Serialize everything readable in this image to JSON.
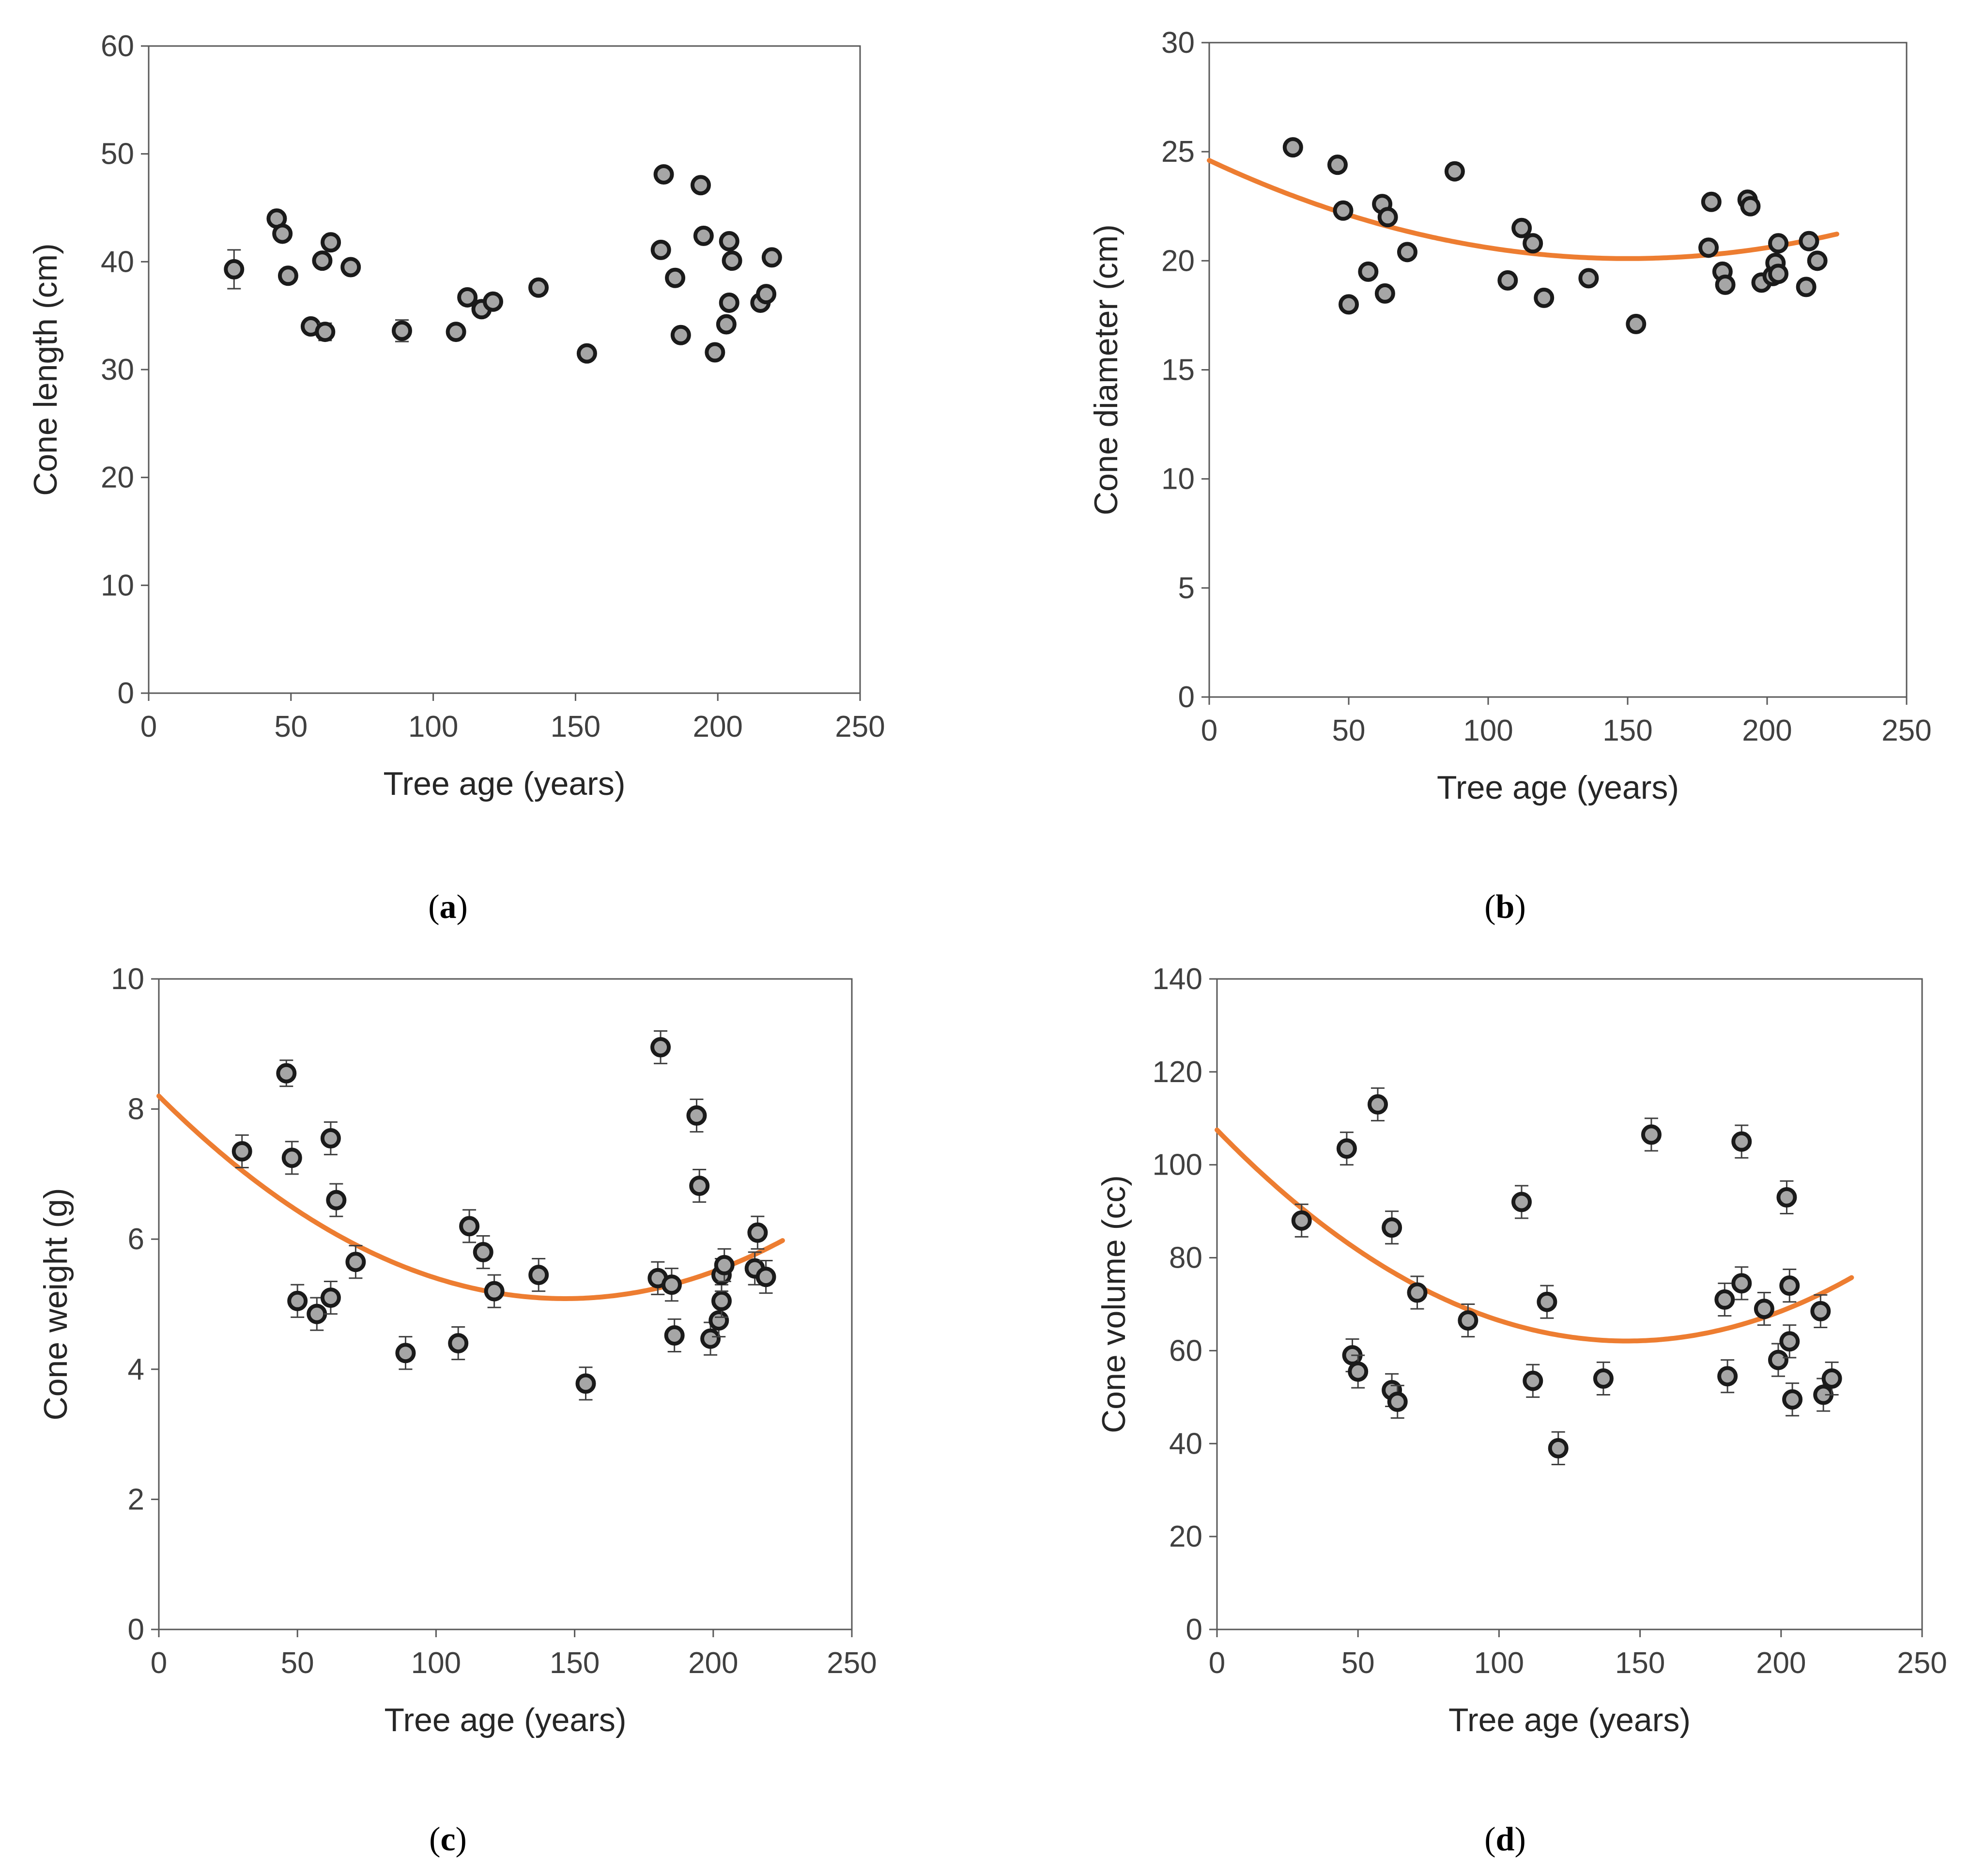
{
  "figure": {
    "colors": {
      "axis": "#595959",
      "marker_fill": "#a6a6a6",
      "marker_edge": "#1a1a1a",
      "trend": "#ed7d31",
      "error": "#404040"
    }
  },
  "chart_data": [
    {
      "id": "a",
      "panel_label": "a",
      "type": "scatter",
      "title": "",
      "xlabel": "Tree age (years)",
      "ylabel": "Cone length (cm)",
      "xlim": [
        0,
        250
      ],
      "ylim": [
        0,
        60
      ],
      "xticks": [
        "0",
        "50",
        "100",
        "150",
        "200",
        "250"
      ],
      "yticks": [
        "0",
        "10",
        "20",
        "30",
        "40",
        "50",
        "60"
      ],
      "grid": false,
      "trendline": null,
      "points": [
        {
          "x": 30,
          "y": 39.3,
          "err": 1.8
        },
        {
          "x": 45,
          "y": 44.0,
          "err": 0.5
        },
        {
          "x": 47,
          "y": 42.6,
          "err": 0.5
        },
        {
          "x": 49,
          "y": 38.7,
          "err": 0.5
        },
        {
          "x": 57,
          "y": 34.0,
          "err": 0.5
        },
        {
          "x": 61,
          "y": 40.1,
          "err": 0.5
        },
        {
          "x": 62,
          "y": 33.5,
          "err": 0.8
        },
        {
          "x": 64,
          "y": 41.8,
          "err": 0.5
        },
        {
          "x": 71,
          "y": 39.5,
          "err": 0.5
        },
        {
          "x": 89,
          "y": 33.6,
          "err": 1.0
        },
        {
          "x": 108,
          "y": 33.5,
          "err": 0.5
        },
        {
          "x": 112,
          "y": 36.7,
          "err": 0.5
        },
        {
          "x": 117,
          "y": 35.6,
          "err": 0.5
        },
        {
          "x": 121,
          "y": 36.3,
          "err": 0.5
        },
        {
          "x": 137,
          "y": 37.6,
          "err": 0.5
        },
        {
          "x": 154,
          "y": 31.5,
          "err": 0.5
        },
        {
          "x": 180,
          "y": 41.1,
          "err": 0.5
        },
        {
          "x": 181,
          "y": 48.1,
          "err": 0.5
        },
        {
          "x": 185,
          "y": 38.5,
          "err": 0.5
        },
        {
          "x": 187,
          "y": 33.2,
          "err": 0.5
        },
        {
          "x": 194,
          "y": 47.1,
          "err": 0.5
        },
        {
          "x": 195,
          "y": 42.4,
          "err": 0.5
        },
        {
          "x": 199,
          "y": 31.6,
          "err": 0.5
        },
        {
          "x": 203,
          "y": 34.2,
          "err": 0.5
        },
        {
          "x": 204,
          "y": 36.2,
          "err": 0.5
        },
        {
          "x": 204,
          "y": 41.9,
          "err": 0.5
        },
        {
          "x": 205,
          "y": 40.1,
          "err": 0.5
        },
        {
          "x": 215,
          "y": 36.2,
          "err": 0.5
        },
        {
          "x": 217,
          "y": 37.0,
          "err": 0.5
        },
        {
          "x": 219,
          "y": 40.4,
          "err": 0.5
        }
      ]
    },
    {
      "id": "b",
      "panel_label": "b",
      "type": "scatter",
      "title": "",
      "xlabel": "Tree age (years)",
      "ylabel": "Cone diameter (cm)",
      "xlim": [
        0,
        250
      ],
      "ylim": [
        0,
        30
      ],
      "xticks": [
        "0",
        "50",
        "100",
        "150",
        "200",
        "250"
      ],
      "yticks": [
        "0",
        "5",
        "10",
        "15",
        "20",
        "25",
        "30"
      ],
      "grid": false,
      "trendline": {
        "type": "quadratic",
        "a": 0.0002,
        "b": -0.06,
        "c": 24.6,
        "x_range": [
          0,
          225
        ]
      },
      "points": [
        {
          "x": 30,
          "y": 25.2,
          "err": 0.3
        },
        {
          "x": 46,
          "y": 24.4,
          "err": 0.3
        },
        {
          "x": 48,
          "y": 22.3,
          "err": 0.3
        },
        {
          "x": 50,
          "y": 18.0,
          "err": 0.3
        },
        {
          "x": 57,
          "y": 19.5,
          "err": 0.3
        },
        {
          "x": 62,
          "y": 22.6,
          "err": 0.3
        },
        {
          "x": 63,
          "y": 18.5,
          "err": 0.3
        },
        {
          "x": 64,
          "y": 22.0,
          "err": 0.3
        },
        {
          "x": 71,
          "y": 20.4,
          "err": 0.3
        },
        {
          "x": 88,
          "y": 24.1,
          "err": 0.3
        },
        {
          "x": 107,
          "y": 19.1,
          "err": 0.3
        },
        {
          "x": 112,
          "y": 21.5,
          "err": 0.3
        },
        {
          "x": 116,
          "y": 20.8,
          "err": 0.3
        },
        {
          "x": 120,
          "y": 18.3,
          "err": 0.3
        },
        {
          "x": 136,
          "y": 19.2,
          "err": 0.3
        },
        {
          "x": 153,
          "y": 17.1,
          "err": 0.3
        },
        {
          "x": 179,
          "y": 20.6,
          "err": 0.3
        },
        {
          "x": 180,
          "y": 22.7,
          "err": 0.3
        },
        {
          "x": 184,
          "y": 19.5,
          "err": 0.3
        },
        {
          "x": 185,
          "y": 18.9,
          "err": 0.3
        },
        {
          "x": 193,
          "y": 22.8,
          "err": 0.3
        },
        {
          "x": 194,
          "y": 22.5,
          "err": 0.3
        },
        {
          "x": 198,
          "y": 19.0,
          "err": 0.3
        },
        {
          "x": 202,
          "y": 19.3,
          "err": 0.3
        },
        {
          "x": 203,
          "y": 19.9,
          "err": 0.3
        },
        {
          "x": 204,
          "y": 19.4,
          "err": 0.3
        },
        {
          "x": 204,
          "y": 20.8,
          "err": 0.3
        },
        {
          "x": 214,
          "y": 18.8,
          "err": 0.3
        },
        {
          "x": 215,
          "y": 20.9,
          "err": 0.3
        },
        {
          "x": 218,
          "y": 20.0,
          "err": 0.3
        }
      ]
    },
    {
      "id": "c",
      "panel_label": "c",
      "type": "scatter",
      "title": "",
      "xlabel": "Tree age (years)",
      "ylabel": "Cone weight (g)",
      "xlim": [
        0,
        250
      ],
      "ylim": [
        0,
        10
      ],
      "xticks": [
        "0",
        "50",
        "100",
        "150",
        "200",
        "250"
      ],
      "yticks": [
        "0",
        "2",
        "4",
        "6",
        "8",
        "10"
      ],
      "grid": false,
      "trendline": {
        "type": "quadratic",
        "a": 0.000145,
        "b": -0.0425,
        "c": 8.2,
        "x_range": [
          0,
          225
        ]
      },
      "points": [
        {
          "x": 30,
          "y": 7.35,
          "err": 0.25
        },
        {
          "x": 46,
          "y": 8.55,
          "err": 0.2
        },
        {
          "x": 48,
          "y": 7.25,
          "err": 0.25
        },
        {
          "x": 50,
          "y": 5.05,
          "err": 0.25
        },
        {
          "x": 57,
          "y": 4.85,
          "err": 0.25
        },
        {
          "x": 62,
          "y": 7.55,
          "err": 0.25
        },
        {
          "x": 62,
          "y": 5.1,
          "err": 0.25
        },
        {
          "x": 64,
          "y": 6.6,
          "err": 0.25
        },
        {
          "x": 71,
          "y": 5.65,
          "err": 0.25
        },
        {
          "x": 89,
          "y": 4.25,
          "err": 0.25
        },
        {
          "x": 108,
          "y": 4.4,
          "err": 0.25
        },
        {
          "x": 112,
          "y": 6.2,
          "err": 0.25
        },
        {
          "x": 117,
          "y": 5.8,
          "err": 0.25
        },
        {
          "x": 121,
          "y": 5.2,
          "err": 0.25
        },
        {
          "x": 137,
          "y": 5.45,
          "err": 0.25
        },
        {
          "x": 154,
          "y": 3.78,
          "err": 0.25
        },
        {
          "x": 180,
          "y": 5.4,
          "err": 0.25
        },
        {
          "x": 181,
          "y": 8.95,
          "err": 0.25
        },
        {
          "x": 185,
          "y": 5.3,
          "err": 0.25
        },
        {
          "x": 186,
          "y": 4.52,
          "err": 0.25
        },
        {
          "x": 194,
          "y": 7.9,
          "err": 0.25
        },
        {
          "x": 195,
          "y": 6.82,
          "err": 0.25
        },
        {
          "x": 199,
          "y": 4.47,
          "err": 0.25
        },
        {
          "x": 202,
          "y": 4.75,
          "err": 0.25
        },
        {
          "x": 203,
          "y": 5.05,
          "err": 0.25
        },
        {
          "x": 203,
          "y": 5.45,
          "err": 0.25
        },
        {
          "x": 204,
          "y": 5.6,
          "err": 0.25
        },
        {
          "x": 215,
          "y": 5.55,
          "err": 0.25
        },
        {
          "x": 216,
          "y": 6.1,
          "err": 0.25
        },
        {
          "x": 219,
          "y": 5.42,
          "err": 0.25
        }
      ]
    },
    {
      "id": "d",
      "panel_label": "d",
      "type": "scatter",
      "title": "",
      "xlabel": "Tree age (years)",
      "ylabel": "Cone volume (cc)",
      "xlim": [
        0,
        250
      ],
      "ylim": [
        0,
        140
      ],
      "xticks": [
        "0",
        "50",
        "100",
        "150",
        "200",
        "250"
      ],
      "yticks": [
        "0",
        "20",
        "40",
        "60",
        "80",
        "100",
        "120",
        "140"
      ],
      "grid": false,
      "trendline": {
        "type": "quadratic",
        "a": 0.00215,
        "b": -0.625,
        "c": 107.5,
        "x_range": [
          0,
          225
        ]
      },
      "points": [
        {
          "x": 30,
          "y": 88,
          "err": 3.5
        },
        {
          "x": 46,
          "y": 103.5,
          "err": 3.5
        },
        {
          "x": 48,
          "y": 59,
          "err": 3.5
        },
        {
          "x": 50,
          "y": 55.5,
          "err": 3.5
        },
        {
          "x": 57,
          "y": 113,
          "err": 3.5
        },
        {
          "x": 62,
          "y": 86.5,
          "err": 3.5
        },
        {
          "x": 62,
          "y": 51.5,
          "err": 3.5
        },
        {
          "x": 64,
          "y": 49,
          "err": 3.5
        },
        {
          "x": 71,
          "y": 72.5,
          "err": 3.5
        },
        {
          "x": 89,
          "y": 66.5,
          "err": 3.5
        },
        {
          "x": 108,
          "y": 92,
          "err": 3.5
        },
        {
          "x": 112,
          "y": 53.5,
          "err": 3.5
        },
        {
          "x": 117,
          "y": 70.5,
          "err": 3.5
        },
        {
          "x": 121,
          "y": 39,
          "err": 3.5
        },
        {
          "x": 137,
          "y": 54,
          "err": 3.5
        },
        {
          "x": 154,
          "y": 106.5,
          "err": 3.5
        },
        {
          "x": 180,
          "y": 71,
          "err": 3.5
        },
        {
          "x": 181,
          "y": 54.5,
          "err": 3.5
        },
        {
          "x": 186,
          "y": 105,
          "err": 3.5
        },
        {
          "x": 186,
          "y": 74.5,
          "err": 3.5
        },
        {
          "x": 194,
          "y": 69,
          "err": 3.5
        },
        {
          "x": 199,
          "y": 58,
          "err": 3.5
        },
        {
          "x": 202,
          "y": 93,
          "err": 3.5
        },
        {
          "x": 203,
          "y": 62,
          "err": 3.5
        },
        {
          "x": 203,
          "y": 74,
          "err": 3.5
        },
        {
          "x": 204,
          "y": 49.5,
          "err": 3.5
        },
        {
          "x": 214,
          "y": 68.5,
          "err": 3.5
        },
        {
          "x": 215,
          "y": 50.5,
          "err": 3.5
        },
        {
          "x": 218,
          "y": 54,
          "err": 3.5
        }
      ]
    }
  ]
}
